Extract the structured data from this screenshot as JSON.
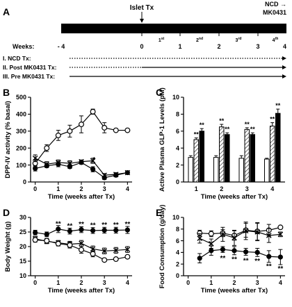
{
  "timeline": {
    "panel_label": "A",
    "islet_label": "Islet Tx",
    "ncd_label": "NCD →",
    "mk_label": "MK0431",
    "weeks_label": "Weeks:",
    "ticks": [
      {
        "label": "- 4",
        "sup": ""
      },
      {
        "label": "0",
        "sup": ""
      },
      {
        "label": "1",
        "sup": "st"
      },
      {
        "label": "1",
        "sup": ""
      },
      {
        "label": "2",
        "sup": "nd"
      },
      {
        "label": "2",
        "sup": ""
      },
      {
        "label": "3",
        "sup": "rd"
      },
      {
        "label": "3",
        "sup": ""
      },
      {
        "label": "4",
        "sup": "th"
      },
      {
        "label": "4",
        "sup": ""
      }
    ],
    "groups": [
      {
        "label": "I. NCD Tx:",
        "pattern": "dotted"
      },
      {
        "label": "II. Post MK0431 Tx:",
        "pattern": "dotted-then-solid"
      },
      {
        "label": "III. Pre MK0431 Tx:",
        "pattern": "solid"
      }
    ]
  },
  "chart_data": [
    {
      "panel": "B",
      "type": "line",
      "xlabel": "Time (weeks after Tx)",
      "ylabel": "DPP-IV activity (% basal)",
      "xlim": [
        -0.2,
        4.2
      ],
      "ylim": [
        0,
        500
      ],
      "xticks": [
        0,
        1,
        2,
        3,
        4
      ],
      "yticks": [
        0,
        100,
        200,
        300,
        400,
        500
      ],
      "series": [
        {
          "marker": "open-circle",
          "x": [
            0,
            0.5,
            1,
            1.5,
            2,
            2.5,
            3,
            3.5,
            4
          ],
          "y": [
            110,
            200,
            275,
            300,
            340,
            415,
            320,
            305,
            305
          ],
          "err": [
            20,
            20,
            30,
            35,
            50,
            15,
            30,
            0,
            0
          ]
        },
        {
          "marker": "cross",
          "x": [
            0,
            0.5,
            1,
            1.5,
            2,
            2.5,
            3,
            3.5,
            4
          ],
          "y": [
            140,
            105,
            115,
            110,
            120,
            125,
            40,
            45,
            55
          ],
          "err": [
            20,
            15,
            15,
            15,
            10,
            15,
            10,
            10,
            10
          ]
        },
        {
          "marker": "filled-circle",
          "x": [
            0,
            0.5,
            1,
            1.5,
            2,
            2.5,
            3,
            3.5,
            4
          ],
          "y": [
            80,
            95,
            105,
            90,
            115,
            75,
            25,
            40,
            55
          ],
          "err": [
            15,
            10,
            15,
            10,
            10,
            15,
            10,
            10,
            10
          ]
        }
      ],
      "annotations": [
        {
          "text": "*",
          "x": 2.55,
          "y": 135
        }
      ]
    },
    {
      "panel": "C",
      "type": "bar",
      "xlabel": "Time (weeks after Tx)",
      "ylabel": "Active Plasma GLP-1 Levels (pM)",
      "ylim": [
        0,
        10
      ],
      "yticks": [
        0,
        2,
        4,
        6,
        8,
        10
      ],
      "categories": [
        "1",
        "2",
        "3",
        "4"
      ],
      "series": [
        {
          "fill": "open",
          "values": [
            2.9,
            2.9,
            2.8,
            2.7
          ],
          "err": [
            0.2,
            0.2,
            0.3,
            0.1
          ]
        },
        {
          "fill": "hatched",
          "values": [
            5.0,
            6.5,
            6.2,
            6.6
          ],
          "err": [
            0.2,
            0.3,
            0.2,
            0.4
          ]
        },
        {
          "fill": "solid",
          "values": [
            6.0,
            5.6,
            5.6,
            8.1
          ],
          "err": [
            0.3,
            0.2,
            0.2,
            0.5
          ]
        }
      ],
      "annotations": [
        {
          "text": "**",
          "category": 0,
          "series": 1
        },
        {
          "text": "**",
          "category": 0,
          "series": 2
        },
        {
          "text": "**",
          "category": 1,
          "series": 1
        },
        {
          "text": "**",
          "category": 1,
          "series": 2
        },
        {
          "text": "**",
          "category": 2,
          "series": 1
        },
        {
          "text": "**",
          "category": 2,
          "series": 2
        },
        {
          "text": "**",
          "category": 3,
          "series": 1
        },
        {
          "text": "**",
          "category": 3,
          "series": 2
        }
      ]
    },
    {
      "panel": "D",
      "type": "line",
      "xlabel": "Time (weeks after Tx)",
      "ylabel": "Body Weight (g)",
      "xlim": [
        -0.2,
        4.2
      ],
      "ylim": [
        10,
        30
      ],
      "xticks": [
        0,
        1,
        2,
        3,
        4
      ],
      "yticks": [
        10,
        15,
        20,
        25,
        30
      ],
      "series": [
        {
          "marker": "filled-circle",
          "x": [
            0,
            0.5,
            1,
            1.5,
            2,
            2.5,
            3,
            3.5,
            4
          ],
          "y": [
            24.8,
            24.2,
            26.0,
            25.3,
            25.8,
            25.5,
            25.6,
            25.6,
            25.7
          ],
          "err": [
            0.8,
            0.8,
            1.2,
            1.0,
            1.0,
            1.0,
            1.0,
            1.0,
            1.2
          ]
        },
        {
          "marker": "cross",
          "x": [
            0,
            0.5,
            1,
            1.5,
            2,
            2.5,
            3,
            3.5,
            4
          ],
          "y": [
            22.7,
            21.8,
            21.3,
            20.8,
            21.1,
            19.2,
            18.5,
            18.7,
            19.0
          ],
          "err": [
            0.8,
            0.8,
            0.8,
            1.0,
            1.0,
            1.0,
            1.0,
            1.0,
            1.0
          ]
        },
        {
          "marker": "open-circle",
          "x": [
            0,
            0.5,
            1,
            1.5,
            2,
            2.5,
            3,
            3.5,
            4
          ],
          "y": [
            22.3,
            22.0,
            21.0,
            20.5,
            18.9,
            17.5,
            15.4,
            15.7,
            16.5
          ],
          "err": [
            0.8,
            0.8,
            0.8,
            1.0,
            1.2,
            1.0,
            0.5,
            0.5,
            0.5
          ]
        }
      ],
      "annotations": [
        {
          "text": "**",
          "x": 1,
          "y": 28.0
        },
        {
          "text": "**",
          "x": 1.5,
          "y": 27.3
        },
        {
          "text": "**",
          "x": 2,
          "y": 27.8
        },
        {
          "text": "**",
          "x": 2.5,
          "y": 27.5
        },
        {
          "text": "**",
          "x": 3,
          "y": 27.6
        },
        {
          "text": "**",
          "x": 3.5,
          "y": 27.6
        },
        {
          "text": "**",
          "x": 4,
          "y": 27.9
        }
      ]
    },
    {
      "panel": "E",
      "type": "line",
      "xlabel": "Time (weeks after Tx)",
      "ylabel": "Food Consumption (g/day)",
      "xlim": [
        -0.2,
        4.2
      ],
      "ylim": [
        0,
        10
      ],
      "xticks": [
        0,
        1,
        2,
        3,
        4
      ],
      "yticks": [
        0,
        2,
        4,
        6,
        8,
        10
      ],
      "series": [
        {
          "marker": "open-circle",
          "x": [
            0.5,
            1,
            1.5,
            2,
            2.5,
            3,
            3.5,
            4
          ],
          "y": [
            7.3,
            7.2,
            7.3,
            6.9,
            7.8,
            7.6,
            7.8,
            8.3
          ],
          "err": [
            0.5,
            0.5,
            0.6,
            0.8,
            1.2,
            1.5,
            1.0,
            0.2
          ]
        },
        {
          "marker": "cross",
          "x": [
            0.5,
            1,
            1.5,
            2,
            2.5,
            3,
            3.5,
            4
          ],
          "y": [
            6.4,
            5.5,
            7.1,
            6.5,
            7.7,
            7.5,
            6.9,
            7.1
          ],
          "err": [
            0.8,
            0.8,
            1.2,
            1.3,
            1.5,
            1.5,
            1.2,
            0.4
          ]
        },
        {
          "marker": "filled-circle",
          "x": [
            0.5,
            1,
            1.5,
            2,
            2.5,
            3,
            3.5,
            4
          ],
          "y": [
            3.0,
            4.3,
            4.5,
            4.3,
            4.1,
            4.0,
            3.3,
            3.2
          ],
          "err": [
            0.8,
            0.8,
            0.5,
            0.7,
            0.6,
            0.7,
            1.0,
            1.3
          ]
        }
      ],
      "annotations": [
        {
          "text": "**",
          "x": 1.5,
          "y": 3.1
        },
        {
          "text": "**",
          "x": 2,
          "y": 2.9
        },
        {
          "text": "**",
          "x": 2.5,
          "y": 2.7
        },
        {
          "text": "**",
          "x": 3,
          "y": 2.6
        },
        {
          "text": "**",
          "x": 3.5,
          "y": 1.7
        },
        {
          "text": "**",
          "x": 4,
          "y": 1.3
        }
      ]
    }
  ]
}
